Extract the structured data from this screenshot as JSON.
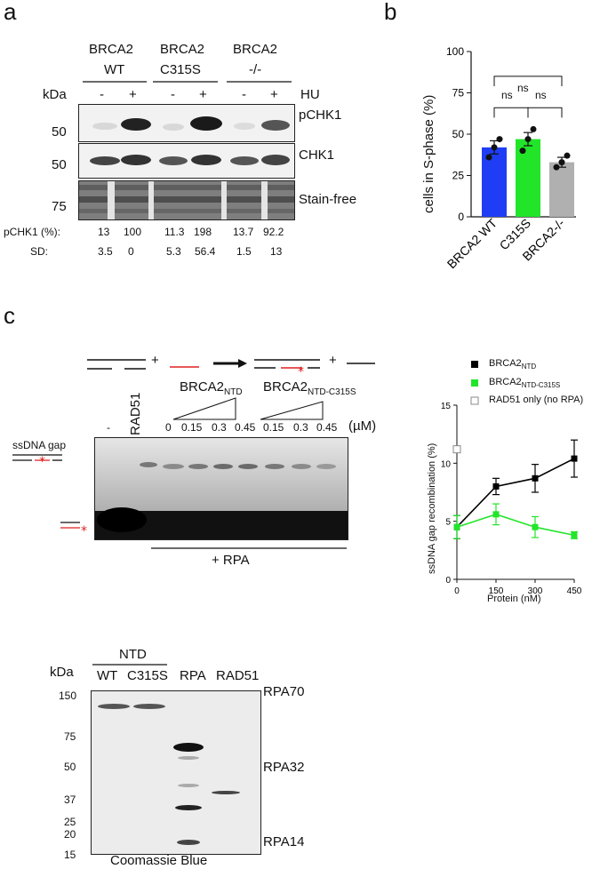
{
  "panel_a": {
    "letter": "a",
    "groups": [
      {
        "name_line1": "BRCA2",
        "name_line2": "WT"
      },
      {
        "name_line1": "BRCA2",
        "name_line2": "C315S"
      },
      {
        "name_line1": "BRCA2",
        "name_line2": "-/-"
      }
    ],
    "kda_label": "kDa",
    "hu_label": "HU",
    "hu_signs": [
      "-",
      "+",
      "-",
      "+",
      "-",
      "+"
    ],
    "blots": [
      {
        "mw": "50",
        "label": "pCHK1"
      },
      {
        "mw": "50",
        "label": "CHK1"
      },
      {
        "mw": "75",
        "label": "Stain-free"
      }
    ],
    "quant_rows": [
      {
        "label": "pCHK1 (%):",
        "values": [
          "13",
          "100",
          "11.3",
          "198",
          "13.7",
          "92.2"
        ]
      },
      {
        "label": "SD:",
        "values": [
          "3.5",
          "0",
          "5.3",
          "56.4",
          "1.5",
          "13"
        ]
      }
    ]
  },
  "panel_b": {
    "letter": "b",
    "ns_labels": [
      "ns",
      "ns",
      "ns"
    ],
    "chart_data": {
      "type": "bar",
      "categories": [
        "BRCA2 WT",
        "C315S",
        "BRCA2-/-"
      ],
      "values": [
        42,
        47,
        33
      ],
      "errors": [
        4,
        4,
        3
      ],
      "points": [
        [
          36,
          42,
          47
        ],
        [
          40,
          47,
          53
        ],
        [
          30,
          33,
          37
        ]
      ],
      "colors": [
        "#1f3df5",
        "#22e52a",
        "#b0b0b0"
      ],
      "ylabel": "cells in S-phase (%)",
      "ylim": [
        0,
        100
      ],
      "yticks": [
        "0",
        "25",
        "50",
        "75",
        "100"
      ]
    }
  },
  "panel_c": {
    "letter": "c",
    "gel_labels": {
      "rad51": "RAD51",
      "ntd": "BRCA2",
      "ntd_sub": "NTD",
      "ntd_c315s": "BRCA2",
      "ntd_c315s_sub": "NTD-C315S",
      "minus": "-",
      "conc": [
        "0",
        "0.15",
        "0.3",
        "0.45",
        "0.15",
        "0.3",
        "0.45"
      ],
      "unit": "(µM)",
      "ssdna_gap": "ssDNA gap",
      "plus_rpa": "+ RPA",
      "plus": "+"
    },
    "chart_data": {
      "type": "line",
      "x": [
        0,
        150,
        300,
        450
      ],
      "series": [
        {
          "name": "BRCA2",
          "sub": "NTD",
          "values": [
            4.5,
            8.0,
            8.7,
            10.4
          ],
          "errors": [
            1.0,
            0.7,
            1.2,
            1.6
          ],
          "color": "#000000",
          "marker": "filled-square"
        },
        {
          "name": "BRCA2",
          "sub": "NTD-C315S",
          "values": [
            4.5,
            5.6,
            4.5,
            3.8
          ],
          "errors": [
            1.0,
            0.9,
            0.9,
            0.3
          ],
          "color": "#22e52a",
          "marker": "filled-square"
        },
        {
          "name": "RAD51 only (no RPA)",
          "sub": "",
          "values": [
            11.2
          ],
          "x": [
            0
          ],
          "color": "#888888",
          "marker": "open-square"
        }
      ],
      "xlabel": "Protein (nM)",
      "ylabel": "ssDNA gap recombination (%)",
      "xlim": [
        0,
        450
      ],
      "ylim": [
        0,
        15
      ],
      "xticks": [
        "0",
        "150",
        "300",
        "450"
      ],
      "yticks": [
        "0",
        "5",
        "10",
        "15"
      ]
    }
  },
  "sds_gel": {
    "kda_label": "kDa",
    "ntd_label": "NTD",
    "lanes": [
      "WT",
      "C315S",
      "RPA",
      "RAD51"
    ],
    "markers": [
      "150",
      "75",
      "50",
      "37",
      "25",
      "20",
      "15"
    ],
    "band_labels": [
      "RPA70",
      "RPA32",
      "RPA14"
    ],
    "footer": "Coomassie Blue"
  }
}
